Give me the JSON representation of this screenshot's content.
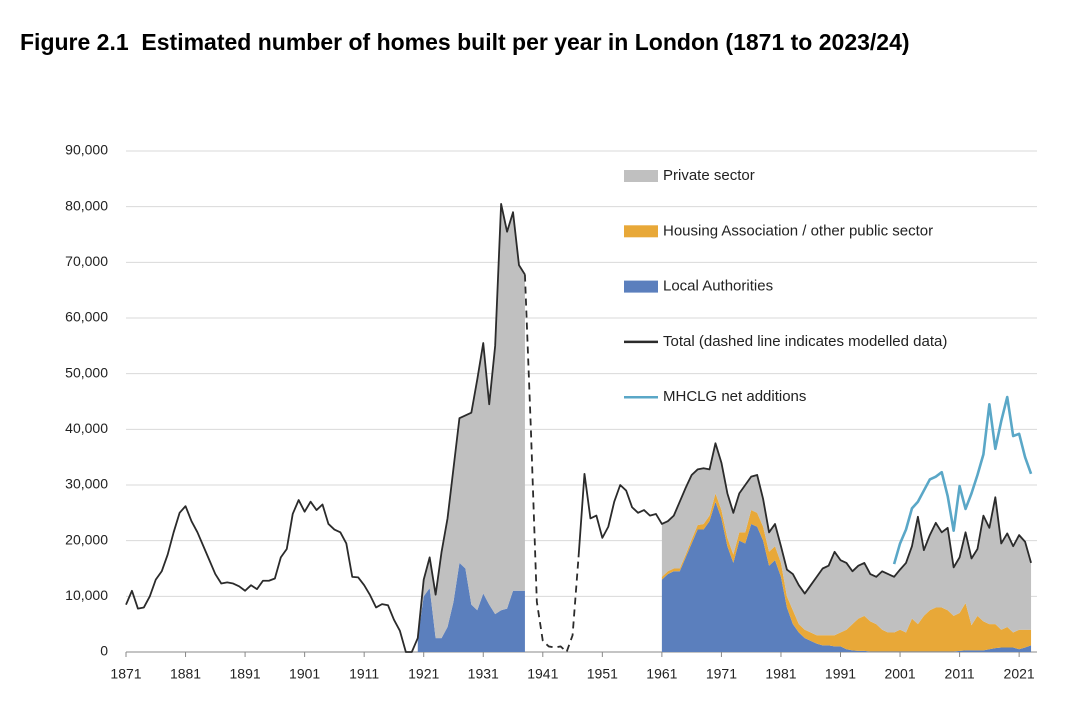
{
  "chart_data": {
    "type": "stacked_area_line",
    "title": "Figure 2.1  Estimated number of homes built per year in London (1871 to 2023/24)",
    "xlim": [
      1871,
      2024
    ],
    "xticks": [
      1871,
      1881,
      1891,
      1901,
      1911,
      1921,
      1931,
      1941,
      1951,
      1961,
      1971,
      1981,
      1991,
      2001,
      2011,
      2021
    ],
    "ylim": [
      0,
      90000
    ],
    "yticks": [
      0,
      {
        "value": 10000,
        "label": "10,000"
      },
      {
        "value": 20000,
        "label": "20,000"
      },
      {
        "value": 30000,
        "label": "30,000"
      },
      {
        "value": 40000,
        "label": "40,000"
      },
      {
        "value": 50000,
        "label": "50,000"
      },
      {
        "value": 60000,
        "label": "60,000"
      },
      {
        "value": 70000,
        "label": "70,000"
      },
      {
        "value": 80000,
        "label": "80,000"
      },
      {
        "value": 90000,
        "label": "90,000"
      }
    ],
    "grid": true,
    "legend": "upper right",
    "x": [
      1871,
      1872,
      1873,
      1874,
      1875,
      1876,
      1877,
      1878,
      1879,
      1880,
      1881,
      1882,
      1883,
      1884,
      1885,
      1886,
      1887,
      1888,
      1889,
      1890,
      1891,
      1892,
      1893,
      1894,
      1895,
      1896,
      1897,
      1898,
      1899,
      1900,
      1901,
      1902,
      1903,
      1904,
      1905,
      1906,
      1907,
      1908,
      1909,
      1910,
      1911,
      1912,
      1913,
      1914,
      1915,
      1916,
      1917,
      1918,
      1919,
      1920,
      1921,
      1922,
      1923,
      1924,
      1925,
      1926,
      1927,
      1928,
      1929,
      1930,
      1931,
      1932,
      1933,
      1934,
      1935,
      1936,
      1937,
      1938,
      1939,
      1940,
      1941,
      1942,
      1943,
      1944,
      1945,
      1946,
      1947,
      1948,
      1949,
      1950,
      1951,
      1952,
      1953,
      1954,
      1955,
      1956,
      1957,
      1958,
      1959,
      1960,
      1961,
      1962,
      1963,
      1964,
      1965,
      1966,
      1967,
      1968,
      1969,
      1970,
      1971,
      1972,
      1973,
      1974,
      1975,
      1976,
      1977,
      1978,
      1979,
      1980,
      1981,
      1982,
      1983,
      1984,
      1985,
      1986,
      1987,
      1988,
      1989,
      1990,
      1991,
      1992,
      1993,
      1994,
      1995,
      1996,
      1997,
      1998,
      1999,
      2000,
      2001,
      2002,
      2003,
      2004,
      2005,
      2006,
      2007,
      2008,
      2009,
      2010,
      2011,
      2012,
      2013,
      2014,
      2015,
      2016,
      2017,
      2018,
      2019,
      2020,
      2021,
      2022,
      2023
    ],
    "series": [
      {
        "name": "Private sector",
        "kind": "area",
        "color": "#c0c0c0",
        "values": [
          null,
          null,
          null,
          null,
          null,
          null,
          null,
          null,
          null,
          null,
          null,
          null,
          null,
          null,
          null,
          null,
          null,
          null,
          null,
          null,
          null,
          null,
          null,
          null,
          null,
          null,
          null,
          null,
          null,
          null,
          null,
          null,
          null,
          null,
          null,
          null,
          null,
          null,
          null,
          null,
          null,
          null,
          null,
          null,
          null,
          null,
          null,
          null,
          null,
          0,
          3000,
          5500,
          7800,
          15500,
          19500,
          24000,
          26000,
          27500,
          34500,
          41500,
          45000,
          36000,
          48200,
          73000,
          67700,
          68000,
          58500,
          56800,
          null,
          null,
          null,
          null,
          null,
          null,
          null,
          null,
          null,
          null,
          null,
          null,
          null,
          null,
          null,
          null,
          null,
          null,
          null,
          null,
          null,
          null,
          9500,
          9000,
          9500,
          12000,
          12000,
          11600,
          10000,
          10000,
          8300,
          9000,
          8500,
          8000,
          7500,
          7000,
          8500,
          6000,
          6800,
          5000,
          3500,
          4000,
          3000,
          4800,
          6500,
          7000,
          6500,
          8500,
          10500,
          12000,
          12500,
          15000,
          13000,
          12000,
          9500,
          9500,
          9500,
          8500,
          8500,
          10500,
          10500,
          10000,
          10800,
          12500,
          13000,
          19300,
          11800,
          13500,
          15200,
          13500,
          14800,
          8700,
          10000,
          12700,
          12000,
          12000,
          19000,
          17300,
          22800,
          15500,
          16800,
          15500,
          17000,
          15800,
          12000
        ]
      },
      {
        "name": "Housing Association / other public sector",
        "kind": "area",
        "color": "#e8a838",
        "values": [
          null,
          null,
          null,
          null,
          null,
          null,
          null,
          null,
          null,
          null,
          null,
          null,
          null,
          null,
          null,
          null,
          null,
          null,
          null,
          null,
          null,
          null,
          null,
          null,
          null,
          null,
          null,
          null,
          null,
          null,
          null,
          null,
          null,
          null,
          null,
          null,
          null,
          null,
          null,
          null,
          null,
          null,
          null,
          null,
          null,
          null,
          null,
          null,
          null,
          null,
          null,
          null,
          null,
          null,
          null,
          null,
          null,
          null,
          null,
          null,
          null,
          null,
          null,
          null,
          null,
          null,
          null,
          null,
          null,
          null,
          null,
          null,
          null,
          null,
          null,
          null,
          null,
          null,
          null,
          null,
          null,
          null,
          null,
          null,
          null,
          null,
          null,
          null,
          null,
          null,
          500,
          500,
          500,
          500,
          500,
          700,
          800,
          1000,
          1000,
          1500,
          1500,
          1500,
          1500,
          1500,
          2000,
          2500,
          2500,
          2500,
          2500,
          2500,
          2500,
          2000,
          2500,
          1500,
          1500,
          1500,
          1500,
          1800,
          1800,
          2000,
          2500,
          3500,
          4700,
          5800,
          6300,
          5400,
          4900,
          3900,
          3400,
          3400,
          3900,
          3400,
          5900,
          4900,
          6400,
          7400,
          7900,
          7900,
          7400,
          6400,
          6800,
          8500,
          4500,
          6200,
          5200,
          4500,
          4300,
          3200,
          3700,
          2700,
          3500,
          3200,
          2800
        ]
      },
      {
        "name": "Local Authorities",
        "kind": "area",
        "color": "#5b7fbd",
        "values": [
          null,
          null,
          null,
          null,
          null,
          null,
          null,
          null,
          null,
          null,
          null,
          null,
          null,
          null,
          null,
          null,
          null,
          null,
          null,
          null,
          null,
          null,
          null,
          null,
          null,
          null,
          null,
          null,
          null,
          null,
          null,
          null,
          null,
          null,
          null,
          null,
          null,
          null,
          null,
          null,
          null,
          null,
          null,
          null,
          null,
          null,
          null,
          null,
          null,
          2500,
          10000,
          11500,
          2500,
          2500,
          4500,
          9000,
          16000,
          15000,
          8500,
          7500,
          10500,
          8500,
          6800,
          7500,
          7800,
          11000,
          11000,
          11000,
          null,
          null,
          null,
          null,
          null,
          null,
          null,
          null,
          null,
          null,
          null,
          null,
          null,
          null,
          null,
          null,
          null,
          null,
          null,
          null,
          null,
          null,
          13000,
          14000,
          14500,
          14500,
          17000,
          19500,
          22000,
          22000,
          23500,
          27000,
          24000,
          19000,
          16000,
          20000,
          19500,
          23000,
          22500,
          20000,
          15500,
          16500,
          13500,
          8000,
          5000,
          3500,
          2500,
          2000,
          1500,
          1200,
          1200,
          1000,
          1000,
          500,
          300,
          200,
          200,
          100,
          100,
          100,
          100,
          100,
          100,
          100,
          100,
          100,
          100,
          100,
          100,
          100,
          100,
          100,
          200,
          300,
          300,
          300,
          300,
          500,
          700,
          800,
          800,
          800,
          500,
          800,
          1200
        ]
      },
      {
        "name": "Total (dashed line indicates modelled data)",
        "kind": "line",
        "color": "#2b2b2b",
        "dashed_range": [
          1938,
          1947
        ],
        "values": [
          8500,
          11000,
          7800,
          8000,
          10000,
          13000,
          14500,
          17500,
          21500,
          25000,
          26200,
          23500,
          21500,
          19000,
          16500,
          14000,
          12300,
          12500,
          12300,
          11800,
          11000,
          12000,
          11300,
          12800,
          12800,
          13200,
          17000,
          18500,
          24800,
          27300,
          25200,
          27000,
          25500,
          26500,
          23000,
          22000,
          21500,
          19500,
          13500,
          13400,
          12000,
          10200,
          8000,
          8600,
          8400,
          5800,
          3800,
          0,
          0,
          2500,
          13000,
          17000,
          10300,
          18000,
          24000,
          33000,
          42000,
          42500,
          43000,
          49000,
          55500,
          44500,
          55000,
          80500,
          75500,
          79000,
          69500,
          67800,
          40000,
          9000,
          2000,
          1000,
          800,
          1000,
          0,
          3000,
          17000,
          32000,
          24000,
          24500,
          20500,
          22500,
          27000,
          30000,
          29000,
          26000,
          25000,
          25500,
          24500,
          24800,
          23000,
          23500,
          24500,
          27000,
          29500,
          31800,
          32800,
          33000,
          32800,
          37500,
          34000,
          28500,
          25000,
          28500,
          30000,
          31500,
          31800,
          27500,
          21500,
          23000,
          19000,
          14800,
          14000,
          12000,
          10500,
          12000,
          13500,
          15000,
          15500,
          18000,
          16500,
          16000,
          14500,
          15500,
          16000,
          14000,
          13500,
          14500,
          14000,
          13500,
          14800,
          16000,
          19000,
          24300,
          18300,
          21000,
          23200,
          21500,
          22300,
          15200,
          17000,
          21500,
          16800,
          18500,
          24500,
          22300,
          27800,
          19500,
          21300,
          19000,
          21000,
          19800,
          16000
        ]
      },
      {
        "name": "MHCLG net additions",
        "kind": "line",
        "color": "#5aa7c7",
        "x": [
          2000,
          2001,
          2002,
          2003,
          2004,
          2005,
          2006,
          2007,
          2008,
          2009,
          2010,
          2011,
          2012,
          2013,
          2014,
          2015,
          2016,
          2017,
          2018,
          2019,
          2020,
          2021,
          2022,
          2023
        ],
        "values": [
          15800,
          19500,
          22000,
          25800,
          27000,
          29000,
          31000,
          31500,
          32300,
          28000,
          21800,
          29800,
          25700,
          28500,
          31800,
          35500,
          44500,
          36500,
          41500,
          45800,
          38800,
          39200,
          35000,
          32000
        ]
      }
    ]
  }
}
